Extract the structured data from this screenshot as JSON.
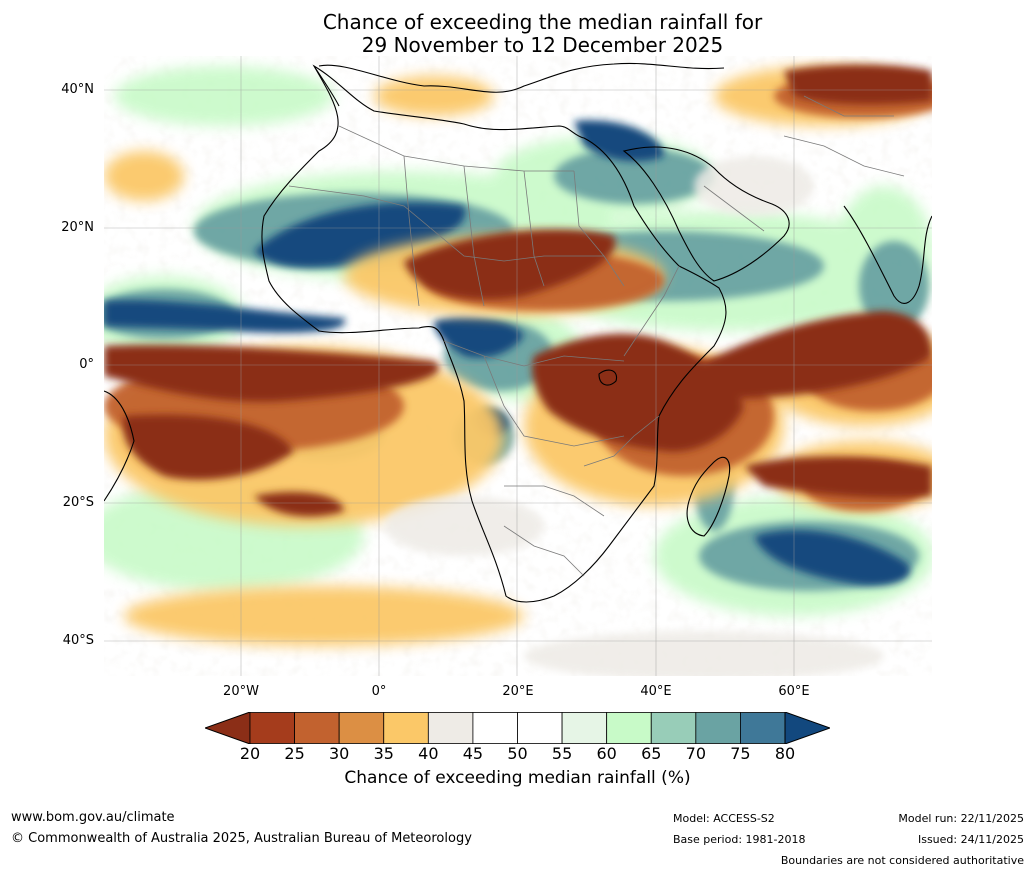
{
  "title": {
    "line1": "Chance of exceeding the median rainfall for",
    "line2": "29 November to 12 December 2025"
  },
  "map": {
    "lat_labels": [
      "40°N",
      "20°N",
      "0°",
      "20°S",
      "40°S"
    ],
    "lon_labels": [
      "20°W",
      "0°",
      "20°E",
      "40°E",
      "60°E"
    ]
  },
  "colorbar": {
    "ticks": [
      "20",
      "25",
      "30",
      "35",
      "40",
      "45",
      "50",
      "55",
      "60",
      "65",
      "70",
      "75",
      "80"
    ],
    "colors": [
      "#8b2e17",
      "#a53c1c",
      "#c2622f",
      "#dc8f44",
      "#fbc868",
      "#eeebe6",
      "#ffffff",
      "#ffffff",
      "#e6f5e6",
      "#c8fac8",
      "#98cdb8",
      "#6aa3a3",
      "#3f7898",
      "#12487e"
    ],
    "label": "Chance of exceeding median rainfall (%)"
  },
  "footer": {
    "website": "www.bom.gov.au/climate",
    "copyright": "© Commonwealth of Australia 2025, Australian Bureau of Meteorology",
    "model": "Model: ACCESS-S2",
    "base_period": "Base period: 1981-2018",
    "model_run": "Model run: 22/11/2025",
    "issued": "Issued: 24/11/2025",
    "disclaimer": "Boundaries are not considered authoritative"
  }
}
